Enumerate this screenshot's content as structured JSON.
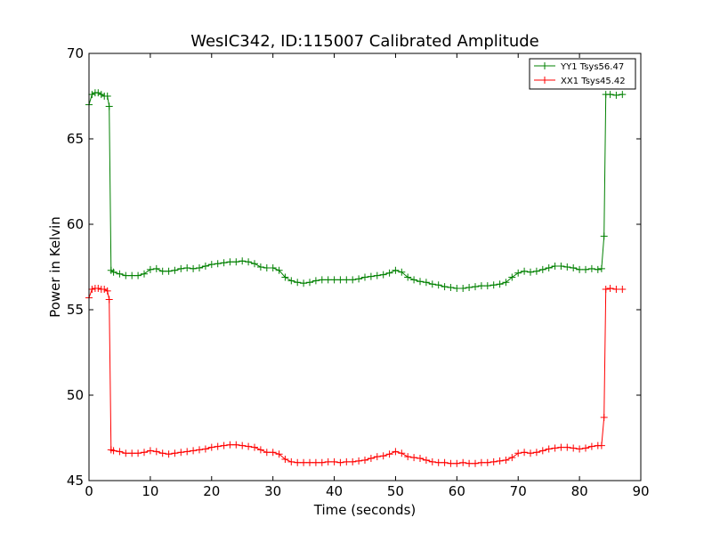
{
  "chart_data": {
    "type": "line",
    "title": "WesIC342, ID:115007 Calibrated Amplitude",
    "xlabel": "Time (seconds)",
    "ylabel": "Power in Kelvin",
    "xlim": [
      0,
      90
    ],
    "ylim": [
      45,
      70
    ],
    "xticks": [
      0,
      10,
      20,
      30,
      40,
      50,
      60,
      70,
      80,
      90
    ],
    "yticks": [
      45,
      50,
      55,
      60,
      65,
      70
    ],
    "grid": false,
    "legend_position": "top-right",
    "marker": "plus",
    "series": [
      {
        "name": "YY1 Tsys56.47",
        "color": "#008000",
        "points": [
          [
            0,
            67.0
          ],
          [
            0.5,
            67.6
          ],
          [
            1,
            67.7
          ],
          [
            1.5,
            67.7
          ],
          [
            2,
            67.6
          ],
          [
            2.5,
            67.5
          ],
          [
            3,
            67.5
          ],
          [
            3.3,
            66.9
          ],
          [
            3.6,
            57.3
          ],
          [
            4,
            57.2
          ],
          [
            5,
            57.1
          ],
          [
            6,
            57.0
          ],
          [
            7,
            57.0
          ],
          [
            8,
            57.0
          ],
          [
            9,
            57.1
          ],
          [
            10,
            57.35
          ],
          [
            11,
            57.4
          ],
          [
            12,
            57.25
          ],
          [
            13,
            57.25
          ],
          [
            14,
            57.3
          ],
          [
            15,
            57.4
          ],
          [
            16,
            57.45
          ],
          [
            17,
            57.4
          ],
          [
            18,
            57.45
          ],
          [
            19,
            57.55
          ],
          [
            20,
            57.65
          ],
          [
            21,
            57.7
          ],
          [
            22,
            57.75
          ],
          [
            23,
            57.8
          ],
          [
            24,
            57.8
          ],
          [
            25,
            57.85
          ],
          [
            26,
            57.8
          ],
          [
            27,
            57.7
          ],
          [
            28,
            57.5
          ],
          [
            29,
            57.45
          ],
          [
            30,
            57.45
          ],
          [
            31,
            57.3
          ],
          [
            32,
            56.9
          ],
          [
            33,
            56.7
          ],
          [
            34,
            56.6
          ],
          [
            35,
            56.55
          ],
          [
            36,
            56.6
          ],
          [
            37,
            56.7
          ],
          [
            38,
            56.75
          ],
          [
            39,
            56.75
          ],
          [
            40,
            56.75
          ],
          [
            41,
            56.75
          ],
          [
            42,
            56.75
          ],
          [
            43,
            56.75
          ],
          [
            44,
            56.8
          ],
          [
            45,
            56.9
          ],
          [
            46,
            56.95
          ],
          [
            47,
            57.0
          ],
          [
            48,
            57.05
          ],
          [
            49,
            57.15
          ],
          [
            50,
            57.3
          ],
          [
            51,
            57.2
          ],
          [
            52,
            56.9
          ],
          [
            53,
            56.75
          ],
          [
            54,
            56.65
          ],
          [
            55,
            56.6
          ],
          [
            56,
            56.5
          ],
          [
            57,
            56.45
          ],
          [
            58,
            56.35
          ],
          [
            59,
            56.3
          ],
          [
            60,
            56.25
          ],
          [
            61,
            56.25
          ],
          [
            62,
            56.3
          ],
          [
            63,
            56.35
          ],
          [
            64,
            56.4
          ],
          [
            65,
            56.4
          ],
          [
            66,
            56.45
          ],
          [
            67,
            56.5
          ],
          [
            68,
            56.6
          ],
          [
            69,
            56.9
          ],
          [
            70,
            57.15
          ],
          [
            71,
            57.25
          ],
          [
            72,
            57.2
          ],
          [
            73,
            57.25
          ],
          [
            74,
            57.35
          ],
          [
            75,
            57.45
          ],
          [
            76,
            57.55
          ],
          [
            77,
            57.55
          ],
          [
            78,
            57.5
          ],
          [
            79,
            57.45
          ],
          [
            80,
            57.35
          ],
          [
            81,
            57.35
          ],
          [
            82,
            57.4
          ],
          [
            83,
            57.35
          ],
          [
            83.6,
            57.4
          ],
          [
            84,
            59.3
          ],
          [
            84.3,
            67.6
          ],
          [
            85,
            67.6
          ],
          [
            86,
            67.55
          ],
          [
            87,
            67.6
          ]
        ]
      },
      {
        "name": "XX1 Tsys45.42",
        "color": "#ff0000",
        "points": [
          [
            0,
            55.7
          ],
          [
            0.5,
            56.2
          ],
          [
            1,
            56.25
          ],
          [
            1.5,
            56.25
          ],
          [
            2,
            56.2
          ],
          [
            2.5,
            56.2
          ],
          [
            3,
            56.1
          ],
          [
            3.3,
            55.6
          ],
          [
            3.6,
            46.8
          ],
          [
            4,
            46.75
          ],
          [
            5,
            46.7
          ],
          [
            6,
            46.6
          ],
          [
            7,
            46.6
          ],
          [
            8,
            46.6
          ],
          [
            9,
            46.65
          ],
          [
            10,
            46.75
          ],
          [
            11,
            46.7
          ],
          [
            12,
            46.6
          ],
          [
            13,
            46.55
          ],
          [
            14,
            46.6
          ],
          [
            15,
            46.65
          ],
          [
            16,
            46.7
          ],
          [
            17,
            46.75
          ],
          [
            18,
            46.8
          ],
          [
            19,
            46.85
          ],
          [
            20,
            46.95
          ],
          [
            21,
            47.0
          ],
          [
            22,
            47.05
          ],
          [
            23,
            47.1
          ],
          [
            24,
            47.1
          ],
          [
            25,
            47.05
          ],
          [
            26,
            47.0
          ],
          [
            27,
            46.95
          ],
          [
            28,
            46.8
          ],
          [
            29,
            46.65
          ],
          [
            30,
            46.65
          ],
          [
            31,
            46.55
          ],
          [
            32,
            46.25
          ],
          [
            33,
            46.1
          ],
          [
            34,
            46.05
          ],
          [
            35,
            46.05
          ],
          [
            36,
            46.05
          ],
          [
            37,
            46.05
          ],
          [
            38,
            46.05
          ],
          [
            39,
            46.1
          ],
          [
            40,
            46.1
          ],
          [
            41,
            46.05
          ],
          [
            42,
            46.1
          ],
          [
            43,
            46.1
          ],
          [
            44,
            46.15
          ],
          [
            45,
            46.2
          ],
          [
            46,
            46.3
          ],
          [
            47,
            46.4
          ],
          [
            48,
            46.45
          ],
          [
            49,
            46.55
          ],
          [
            50,
            46.7
          ],
          [
            51,
            46.6
          ],
          [
            52,
            46.4
          ],
          [
            53,
            46.35
          ],
          [
            54,
            46.3
          ],
          [
            55,
            46.2
          ],
          [
            56,
            46.1
          ],
          [
            57,
            46.05
          ],
          [
            58,
            46.05
          ],
          [
            59,
            46.0
          ],
          [
            60,
            46.0
          ],
          [
            61,
            46.05
          ],
          [
            62,
            46.0
          ],
          [
            63,
            46.0
          ],
          [
            64,
            46.05
          ],
          [
            65,
            46.05
          ],
          [
            66,
            46.1
          ],
          [
            67,
            46.15
          ],
          [
            68,
            46.2
          ],
          [
            69,
            46.35
          ],
          [
            70,
            46.6
          ],
          [
            71,
            46.65
          ],
          [
            72,
            46.6
          ],
          [
            73,
            46.65
          ],
          [
            74,
            46.75
          ],
          [
            75,
            46.85
          ],
          [
            76,
            46.9
          ],
          [
            77,
            46.95
          ],
          [
            78,
            46.95
          ],
          [
            79,
            46.9
          ],
          [
            80,
            46.85
          ],
          [
            81,
            46.9
          ],
          [
            82,
            47.0
          ],
          [
            83,
            47.05
          ],
          [
            83.6,
            47.05
          ],
          [
            84,
            48.7
          ],
          [
            84.3,
            56.2
          ],
          [
            85,
            56.25
          ],
          [
            86,
            56.2
          ],
          [
            87,
            56.2
          ]
        ]
      }
    ]
  }
}
